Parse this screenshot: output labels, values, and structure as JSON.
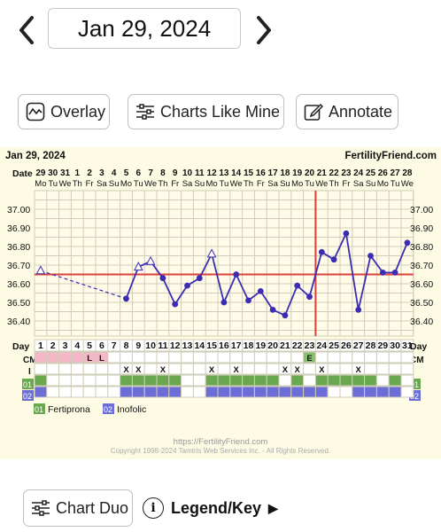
{
  "nav": {
    "date": "Jan 29, 2024"
  },
  "toolbar": {
    "overlay_label": "Overlay",
    "charts_like_mine_label": "Charts Like Mine",
    "annotate_label": "Annotate"
  },
  "chart": {
    "date_label": "Jan 29, 2024",
    "site": "FertilityFriend.com",
    "row_date_label": "Date",
    "row_day_label": "Day",
    "row_cm_label": "CM",
    "row_i_label": "I",
    "row_o1_label": "01",
    "row_o2_label": "02",
    "legend_o1": "Fertiprona",
    "legend_o2": "Inofolic",
    "footer_url": "https://FertilityFriend.com",
    "footer_copy": "Copyright 1998-2024 Tamtris Web Services Inc. - All Rights Reserved."
  },
  "chart_data": {
    "type": "line",
    "dates": [
      "29",
      "30",
      "31",
      "1",
      "2",
      "3",
      "4",
      "5",
      "6",
      "7",
      "8",
      "9",
      "10",
      "11",
      "12",
      "13",
      "14",
      "15",
      "16",
      "17",
      "18",
      "19",
      "20",
      "21",
      "22",
      "23",
      "24",
      "25",
      "26",
      "27",
      "28"
    ],
    "weekdays": [
      "Mo",
      "Tu",
      "We",
      "Th",
      "Fr",
      "Sa",
      "Su",
      "Mo",
      "Tu",
      "We",
      "Th",
      "Fr",
      "Sa",
      "Su",
      "Mo",
      "Tu",
      "We",
      "Th",
      "Fr",
      "Sa",
      "Su",
      "Mo",
      "Tu",
      "We",
      "Th",
      "Fr",
      "Sa",
      "Su",
      "Mo",
      "Tu",
      "We"
    ],
    "days": [
      "1",
      "2",
      "3",
      "4",
      "5",
      "6",
      "7",
      "8",
      "9",
      "10",
      "11",
      "12",
      "13",
      "14",
      "15",
      "16",
      "17",
      "18",
      "19",
      "20",
      "21",
      "22",
      "23",
      "24",
      "25",
      "26",
      "27",
      "28",
      "29",
      "30",
      "31"
    ],
    "y_ticks": [
      "37.00",
      "36.90",
      "36.80",
      "36.70",
      "36.60",
      "36.50",
      "36.40"
    ],
    "ylim": [
      36.3,
      37.05
    ],
    "temps": [
      36.67,
      null,
      null,
      null,
      null,
      null,
      null,
      36.52,
      36.69,
      36.72,
      36.63,
      36.49,
      36.59,
      36.63,
      36.76,
      36.5,
      36.65,
      36.51,
      36.56,
      36.46,
      36.43,
      36.59,
      36.53,
      36.77,
      36.73,
      36.87,
      36.46,
      36.75,
      36.66,
      36.66,
      36.82
    ],
    "open_points": [
      0,
      8,
      9,
      14
    ],
    "dashed_segment": [
      0,
      7
    ],
    "coverline": 36.65,
    "ovulation_day_index": 22,
    "cm": [
      "",
      "",
      "",
      "",
      "L",
      "L",
      "",
      "",
      "",
      "",
      "",
      "",
      "",
      "",
      "",
      "",
      "",
      "",
      "",
      "",
      "",
      "",
      "E",
      "",
      "",
      "",
      "",
      "",
      "",
      "",
      ""
    ],
    "intercourse": [
      "",
      "",
      "",
      "",
      "",
      "",
      "",
      "X",
      "X",
      "",
      "X",
      "",
      "",
      "",
      "X",
      "",
      "X",
      "",
      "",
      "",
      "X",
      "X",
      "",
      "X",
      "",
      "",
      "X",
      "",
      "",
      "",
      ""
    ],
    "o1": [
      1,
      0,
      0,
      0,
      0,
      0,
      0,
      1,
      1,
      1,
      1,
      1,
      0,
      0,
      1,
      1,
      1,
      1,
      1,
      1,
      0,
      1,
      0,
      1,
      1,
      1,
      1,
      1,
      0,
      1,
      0
    ],
    "o2": [
      1,
      0,
      0,
      0,
      0,
      0,
      0,
      1,
      1,
      1,
      1,
      1,
      0,
      0,
      1,
      1,
      1,
      1,
      1,
      1,
      1,
      1,
      1,
      1,
      0,
      0,
      1,
      1,
      1,
      1,
      0
    ]
  },
  "bottom": {
    "chart_duo_label": "Chart Duo",
    "legend_label": "Legend/Key",
    "legend_arrow": "▶"
  },
  "colors": {
    "line": "#3a2db4",
    "coverline": "#d9413a",
    "grid": "#cfcdb8",
    "o1_green": "#6aa84f",
    "o2_blue": "#6d6dd8",
    "cm_pink": "#f4b8c8",
    "e_green": "#88c070"
  }
}
